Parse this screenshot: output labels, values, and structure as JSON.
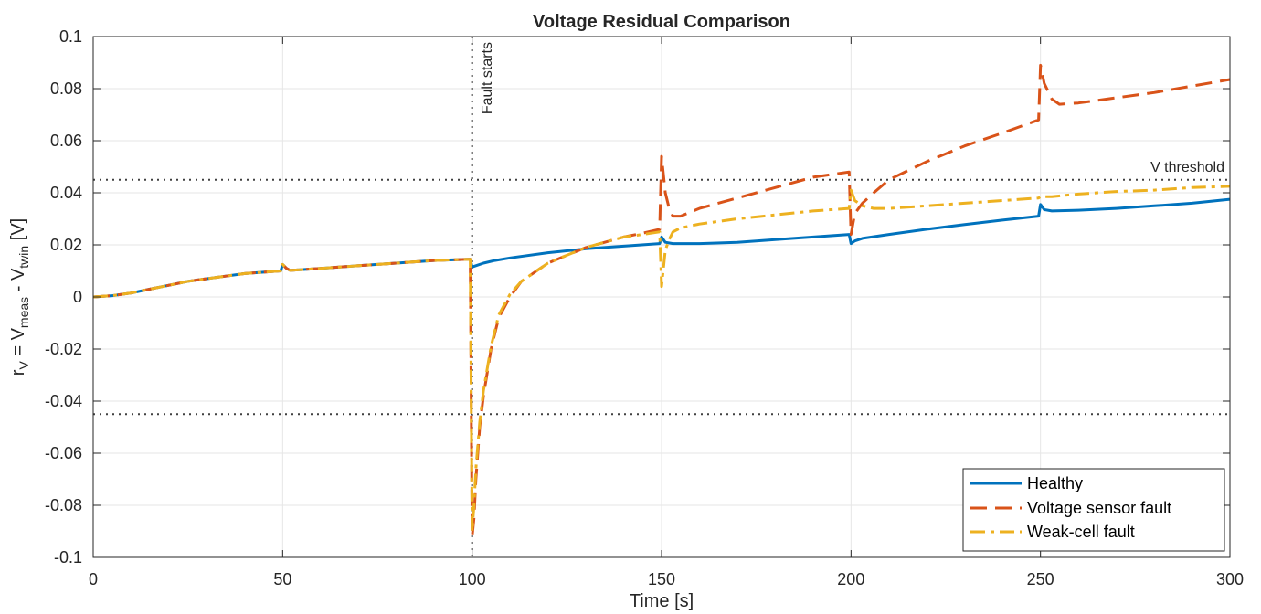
{
  "chart_data": {
    "type": "line",
    "title": "Voltage Residual Comparison",
    "xlabel": "Time [s]",
    "ylabel": {
      "main": "r",
      "main_sub": "V",
      "mid": " = V",
      "mid_sub": "meas",
      "rest": " - V",
      "rest_sub": "twin",
      "unit": " [V]"
    },
    "xlim": [
      0,
      300
    ],
    "ylim": [
      -0.1,
      0.1
    ],
    "xticks": [
      0,
      50,
      100,
      150,
      200,
      250,
      300
    ],
    "yticks": [
      -0.1,
      -0.08,
      -0.06,
      -0.04,
      -0.02,
      0,
      0.02,
      0.04,
      0.06,
      0.08,
      0.1
    ],
    "xtick_labels": [
      "0",
      "50",
      "100",
      "150",
      "200",
      "250",
      "300"
    ],
    "ytick_labels": [
      "-0.1",
      "-0.08",
      "-0.06",
      "-0.04",
      "-0.02",
      "0",
      "0.02",
      "0.04",
      "0.06",
      "0.08",
      "0.1"
    ],
    "grid": true,
    "legend_position": "bottom-right",
    "annotations": {
      "fault_line_x": 100,
      "fault_label": "Fault starts",
      "threshold_upper": 0.045,
      "threshold_lower": -0.045,
      "threshold_label": "V threshold"
    },
    "series": [
      {
        "name": "Healthy",
        "color": "#0072BD",
        "style": "solid",
        "x": [
          0,
          5,
          10,
          15,
          20,
          25,
          30,
          35,
          40,
          45,
          49.5,
          50,
          51,
          52,
          55,
          60,
          70,
          80,
          90,
          99.5,
          100,
          101,
          103,
          106,
          110,
          120,
          130,
          140,
          149.5,
          150,
          151,
          153,
          160,
          170,
          180,
          190,
          199.5,
          200,
          201,
          203,
          210,
          220,
          230,
          240,
          249.5,
          250,
          251,
          253,
          260,
          270,
          280,
          290,
          300
        ],
        "y": [
          0,
          0.0005,
          0.0015,
          0.003,
          0.0045,
          0.006,
          0.007,
          0.008,
          0.009,
          0.0095,
          0.01,
          0.0125,
          0.011,
          0.0102,
          0.0105,
          0.011,
          0.012,
          0.013,
          0.014,
          0.0145,
          0.0115,
          0.012,
          0.013,
          0.014,
          0.015,
          0.017,
          0.0185,
          0.0195,
          0.0205,
          0.023,
          0.021,
          0.0205,
          0.0205,
          0.021,
          0.022,
          0.023,
          0.024,
          0.0205,
          0.0215,
          0.0225,
          0.024,
          0.026,
          0.0278,
          0.0295,
          0.031,
          0.0355,
          0.0335,
          0.033,
          0.0333,
          0.034,
          0.035,
          0.036,
          0.0375
        ]
      },
      {
        "name": "Voltage sensor fault",
        "color": "#D95319",
        "style": "dashed",
        "x": [
          0,
          5,
          10,
          15,
          20,
          25,
          30,
          35,
          40,
          45,
          49.5,
          50,
          51,
          52,
          55,
          60,
          70,
          80,
          90,
          99.5,
          100,
          100.5,
          101,
          102,
          103,
          105,
          107,
          110,
          113,
          117,
          120,
          125,
          130,
          135,
          140,
          145,
          149.5,
          150,
          151,
          152,
          153,
          155,
          160,
          170,
          180,
          190,
          199.5,
          200,
          201,
          203,
          206,
          210,
          220,
          230,
          240,
          249.5,
          250,
          251,
          253,
          255,
          260,
          270,
          280,
          290,
          300
        ],
        "y": [
          0,
          0.0005,
          0.0015,
          0.003,
          0.0045,
          0.006,
          0.007,
          0.008,
          0.009,
          0.0095,
          0.01,
          0.0125,
          0.011,
          0.0102,
          0.0105,
          0.011,
          0.012,
          0.013,
          0.014,
          0.0145,
          -0.092,
          -0.085,
          -0.07,
          -0.05,
          -0.038,
          -0.02,
          -0.008,
          0.0,
          0.006,
          0.01,
          0.013,
          0.016,
          0.019,
          0.021,
          0.023,
          0.0245,
          0.026,
          0.054,
          0.04,
          0.034,
          0.031,
          0.031,
          0.034,
          0.038,
          0.042,
          0.046,
          0.048,
          0.024,
          0.032,
          0.036,
          0.04,
          0.045,
          0.052,
          0.058,
          0.063,
          0.068,
          0.089,
          0.082,
          0.076,
          0.074,
          0.0745,
          0.0765,
          0.0785,
          0.081,
          0.0835
        ]
      },
      {
        "name": "Weak-cell fault",
        "color": "#EDB120",
        "style": "dashdot",
        "x": [
          0,
          5,
          10,
          15,
          20,
          25,
          30,
          35,
          40,
          45,
          49.5,
          50,
          51,
          52,
          55,
          60,
          70,
          80,
          90,
          99.5,
          100,
          100.5,
          101,
          102,
          103,
          105,
          107,
          110,
          113,
          117,
          120,
          125,
          130,
          135,
          140,
          145,
          149.5,
          150,
          151,
          152,
          153,
          155,
          160,
          170,
          180,
          190,
          199.5,
          200,
          201,
          203,
          206,
          210,
          220,
          230,
          240,
          249.5,
          250,
          251,
          253,
          260,
          270,
          280,
          290,
          300
        ],
        "y": [
          0,
          0.0005,
          0.0015,
          0.003,
          0.0045,
          0.006,
          0.007,
          0.008,
          0.009,
          0.0095,
          0.01,
          0.0125,
          0.011,
          0.0102,
          0.0105,
          0.011,
          0.012,
          0.013,
          0.014,
          0.0145,
          -0.09,
          -0.08,
          -0.066,
          -0.048,
          -0.036,
          -0.019,
          -0.007,
          0.001,
          0.006,
          0.01,
          0.013,
          0.016,
          0.019,
          0.021,
          0.023,
          0.024,
          0.025,
          0.004,
          0.018,
          0.022,
          0.025,
          0.0265,
          0.028,
          0.03,
          0.0315,
          0.033,
          0.034,
          0.041,
          0.037,
          0.035,
          0.034,
          0.034,
          0.035,
          0.036,
          0.037,
          0.038,
          0.0385,
          0.0385,
          0.0385,
          0.0395,
          0.0405,
          0.041,
          0.042,
          0.0425
        ]
      }
    ]
  }
}
